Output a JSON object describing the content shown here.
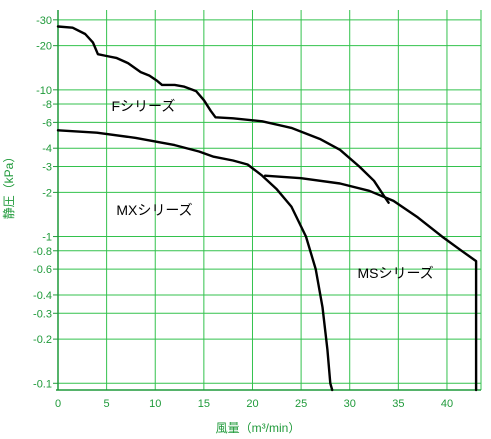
{
  "chart_data": {
    "type": "line",
    "xlabel": "風量（m³/min）",
    "ylabel": "静圧（kPa）",
    "x_scale": "linear",
    "y_scale": "log",
    "xlim": [
      0,
      43.5
    ],
    "ylim": [
      0.09,
      35
    ],
    "x_ticks": [
      0,
      5,
      10,
      15,
      20,
      25,
      30,
      35,
      40
    ],
    "y_ticks": [
      {
        "value": 30,
        "label": "-30"
      },
      {
        "value": 20,
        "label": "-20"
      },
      {
        "value": 10,
        "label": "-10"
      },
      {
        "value": 8,
        "label": "-8"
      },
      {
        "value": 6,
        "label": "-6"
      },
      {
        "value": 4,
        "label": "-4"
      },
      {
        "value": 3,
        "label": "-3"
      },
      {
        "value": 2,
        "label": "-2"
      },
      {
        "value": 1,
        "label": "-1"
      },
      {
        "value": 0.8,
        "label": "-0.8"
      },
      {
        "value": 0.6,
        "label": "-0.6"
      },
      {
        "value": 0.4,
        "label": "-0.4"
      },
      {
        "value": 0.3,
        "label": "-0.3"
      },
      {
        "value": 0.2,
        "label": "-0.2"
      },
      {
        "value": 0.1,
        "label": "-0.1"
      }
    ],
    "grid": true,
    "colors": {
      "axis": "#1f9a3a",
      "grid": "#33c24d",
      "line": "#000000"
    },
    "series": [
      {
        "name": "Fシリーズ",
        "label_at": [
          5.5,
          7.2
        ],
        "points": [
          [
            0,
            27
          ],
          [
            1.5,
            26.5
          ],
          [
            2.8,
            24
          ],
          [
            3.6,
            21
          ],
          [
            4.1,
            17.5
          ],
          [
            5,
            17
          ],
          [
            6,
            16.5
          ],
          [
            7.2,
            15.2
          ],
          [
            8.5,
            13.2
          ],
          [
            9.4,
            12.5
          ],
          [
            10.2,
            11.5
          ],
          [
            10.7,
            10.8
          ],
          [
            12,
            10.8
          ],
          [
            13,
            10.5
          ],
          [
            14.2,
            9.8
          ],
          [
            15,
            8.5
          ],
          [
            15.7,
            7.2
          ],
          [
            16.2,
            6.5
          ],
          [
            18,
            6.4
          ],
          [
            21,
            6.1
          ],
          [
            24,
            5.5
          ],
          [
            27,
            4.6
          ],
          [
            29,
            3.9
          ],
          [
            31,
            3.0
          ],
          [
            32.5,
            2.4
          ],
          [
            33.5,
            1.9
          ],
          [
            34,
            1.7
          ]
        ]
      },
      {
        "name": "MXシリーズ",
        "label_at": [
          6,
          1.4
        ],
        "points": [
          [
            0,
            5.3
          ],
          [
            4,
            5.1
          ],
          [
            8,
            4.7
          ],
          [
            12,
            4.2
          ],
          [
            14.5,
            3.8
          ],
          [
            16,
            3.5
          ],
          [
            18,
            3.3
          ],
          [
            19.5,
            3.1
          ],
          [
            21,
            2.6
          ],
          [
            22.5,
            2.1
          ],
          [
            24,
            1.6
          ],
          [
            25.5,
            1.0
          ],
          [
            26.5,
            0.6
          ],
          [
            27.2,
            0.33
          ],
          [
            27.7,
            0.17
          ],
          [
            28,
            0.1
          ],
          [
            28.2,
            0.09
          ]
        ]
      },
      {
        "name": "MSシリーズ",
        "label_at": [
          30.8,
          0.52
        ],
        "points": [
          [
            21.3,
            2.6
          ],
          [
            25,
            2.5
          ],
          [
            29,
            2.3
          ],
          [
            32,
            2.05
          ],
          [
            34.5,
            1.75
          ],
          [
            37,
            1.35
          ],
          [
            39.5,
            1.0
          ],
          [
            41.5,
            0.8
          ],
          [
            43,
            0.68
          ],
          [
            43,
            0.09
          ]
        ]
      }
    ]
  }
}
